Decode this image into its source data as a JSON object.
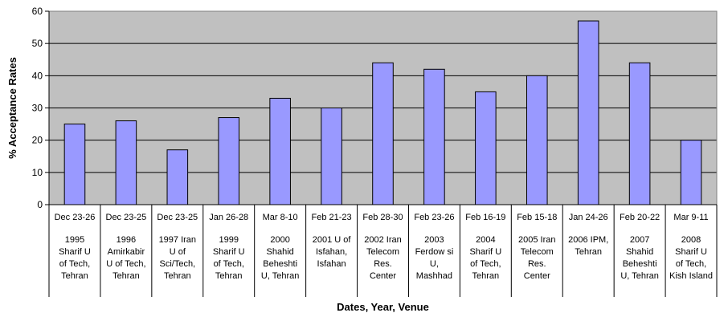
{
  "chart_data": {
    "type": "bar",
    "title": "",
    "xlabel": "Dates, Year, Venue",
    "ylabel": "% Acceptance Rates",
    "ylim": [
      0,
      60
    ],
    "yticks": [
      0,
      10,
      20,
      30,
      40,
      50,
      60
    ],
    "grid": true,
    "legend": "none",
    "colors": {
      "bar_fill": "#9999ff",
      "plot_background": "#c0c0c0",
      "bar_stroke": "#000000"
    },
    "categories": [
      {
        "dates": "Dec 23-26",
        "venue": [
          "1995",
          "Sharif U",
          "of Tech,",
          "Tehran"
        ]
      },
      {
        "dates": "Dec 23-25",
        "venue": [
          "1996",
          "Amirkabir",
          "U of Tech,",
          "Tehran"
        ]
      },
      {
        "dates": "Dec 23-25",
        "venue": [
          "1997  Iran",
          "U of",
          "Sci/Tech,",
          "Tehran"
        ]
      },
      {
        "dates": "Jan 26-28",
        "venue": [
          "1999",
          "Sharif U",
          "of Tech,",
          "Tehran"
        ]
      },
      {
        "dates": "Mar  8-10",
        "venue": [
          "2000",
          "Shahid",
          "Beheshti",
          "U, Tehran"
        ]
      },
      {
        "dates": "Feb 21-23",
        "venue": [
          "2001  U of",
          "Isfahan,",
          "Isfahan"
        ]
      },
      {
        "dates": "Feb 28-30",
        "venue": [
          "2002  Iran",
          "Telecom",
          "Res.",
          "Center"
        ]
      },
      {
        "dates": "Feb 23-26",
        "venue": [
          "2003",
          "Ferdow si",
          "U,",
          "Mashhad"
        ]
      },
      {
        "dates": "Feb 16-19",
        "venue": [
          "2004",
          "Sharif U",
          "of Tech,",
          "Tehran"
        ]
      },
      {
        "dates": "Feb 15-18",
        "venue": [
          "2005  Iran",
          "Telecom",
          "Res.",
          "Center"
        ]
      },
      {
        "dates": "Jan 24-26",
        "venue": [
          "2006  IPM,",
          "Tehran"
        ]
      },
      {
        "dates": "Feb 20-22",
        "venue": [
          "2007",
          "Shahid",
          "Beheshti",
          "U, Tehran"
        ]
      },
      {
        "dates": "Mar  9-11",
        "venue": [
          "2008",
          "Sharif U",
          "of Tech,",
          "Kish Island"
        ]
      }
    ],
    "values": [
      25,
      26,
      17,
      27,
      33,
      30,
      44,
      42,
      35,
      40,
      57,
      44,
      20
    ]
  }
}
